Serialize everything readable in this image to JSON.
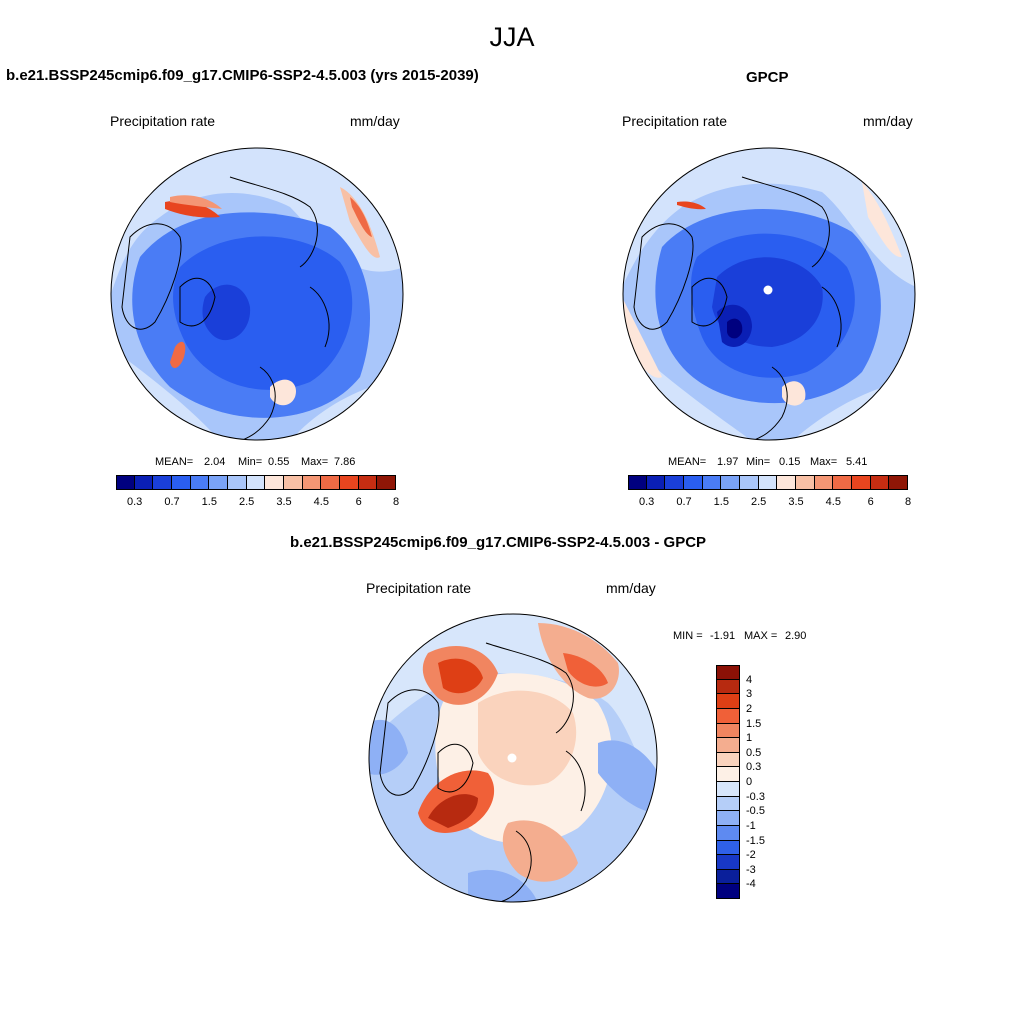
{
  "figure": {
    "title": "JJA"
  },
  "panels": {
    "model": {
      "title": "b.e21.BSSP245cmip6.f09_g17.CMIP6-SSP2-4.5.003 (yrs 2015-2039)",
      "left_label": "Precipitation rate",
      "right_label": "mm/day",
      "mean_label": "MEAN=",
      "mean_value": "2.04",
      "min_label": "Min=",
      "min_value": "0.55",
      "max_label": "Max=",
      "max_value": "7.86"
    },
    "obs": {
      "title": "GPCP",
      "left_label": "Precipitation rate",
      "right_label": "mm/day",
      "mean_label": "MEAN=",
      "mean_value": "1.97",
      "min_label": "Min=",
      "min_value": "0.15",
      "max_label": "Max=",
      "max_value": "5.41"
    },
    "diff": {
      "title": "b.e21.BSSP245cmip6.f09_g17.CMIP6-SSP2-4.5.003 - GPCP",
      "left_label": "Precipitation rate",
      "right_label": "mm/day",
      "min_label": "MIN =",
      "min_value": "-1.91",
      "max_label": "MAX =",
      "max_value": "2.90"
    }
  },
  "colorbars": {
    "precip": {
      "colors": [
        "#00007f",
        "#0a1fb5",
        "#1a3fd9",
        "#2a5ef0",
        "#4a7cf5",
        "#7aa3f7",
        "#a9c6fa",
        "#d3e3fc",
        "#fde6da",
        "#f8c0a5",
        "#f49674",
        "#ef6a45",
        "#e8451f",
        "#c52d12",
        "#8f1606"
      ],
      "tick_labels": [
        "0.3",
        "0.7",
        "1.5",
        "2.5",
        "3.5",
        "4.5",
        "6",
        "8"
      ]
    },
    "diff": {
      "colors": [
        "#8b1106",
        "#b72a10",
        "#de3f15",
        "#f06038",
        "#f18560",
        "#f4ad8f",
        "#fad3bd",
        "#fdf0e6",
        "#d7e6fb",
        "#b5cef8",
        "#8eb0f5",
        "#5e8af1",
        "#2f60e8",
        "#1838c6",
        "#0a1f9b",
        "#00007f"
      ],
      "tick_labels": [
        "4",
        "3",
        "2",
        "1.5",
        "1",
        "0.5",
        "0.3",
        "0",
        "-0.3",
        "-0.5",
        "-1",
        "-1.5",
        "-2",
        "-3",
        "-4"
      ]
    }
  },
  "chart_data": [
    {
      "type": "heatmap",
      "title": "b.e21.BSSP245cmip6.f09_g17.CMIP6-SSP2-4.5.003 (yrs 2015-2039)",
      "projection": "north polar stereographic",
      "variable": "Precipitation rate",
      "units": "mm/day",
      "stats": {
        "mean": 2.04,
        "min": 0.55,
        "max": 7.86
      },
      "levels": [
        0.3,
        0.5,
        0.7,
        1,
        1.5,
        2,
        2.5,
        3,
        3.5,
        4,
        4.5,
        5,
        6,
        7,
        8
      ]
    },
    {
      "type": "heatmap",
      "title": "GPCP",
      "projection": "north polar stereographic",
      "variable": "Precipitation rate",
      "units": "mm/day",
      "stats": {
        "mean": 1.97,
        "min": 0.15,
        "max": 5.41
      },
      "levels": [
        0.3,
        0.5,
        0.7,
        1,
        1.5,
        2,
        2.5,
        3,
        3.5,
        4,
        4.5,
        5,
        6,
        7,
        8
      ]
    },
    {
      "type": "heatmap",
      "title": "b.e21.BSSP245cmip6.f09_g17.CMIP6-SSP2-4.5.003 - GPCP",
      "projection": "north polar stereographic",
      "variable": "Precipitation rate",
      "units": "mm/day",
      "stats": {
        "min": -1.91,
        "max": 2.9
      },
      "levels": [
        -4,
        -3,
        -2,
        -1.5,
        -1,
        -0.5,
        -0.3,
        0,
        0.3,
        0.5,
        1,
        1.5,
        2,
        3,
        4
      ]
    }
  ]
}
